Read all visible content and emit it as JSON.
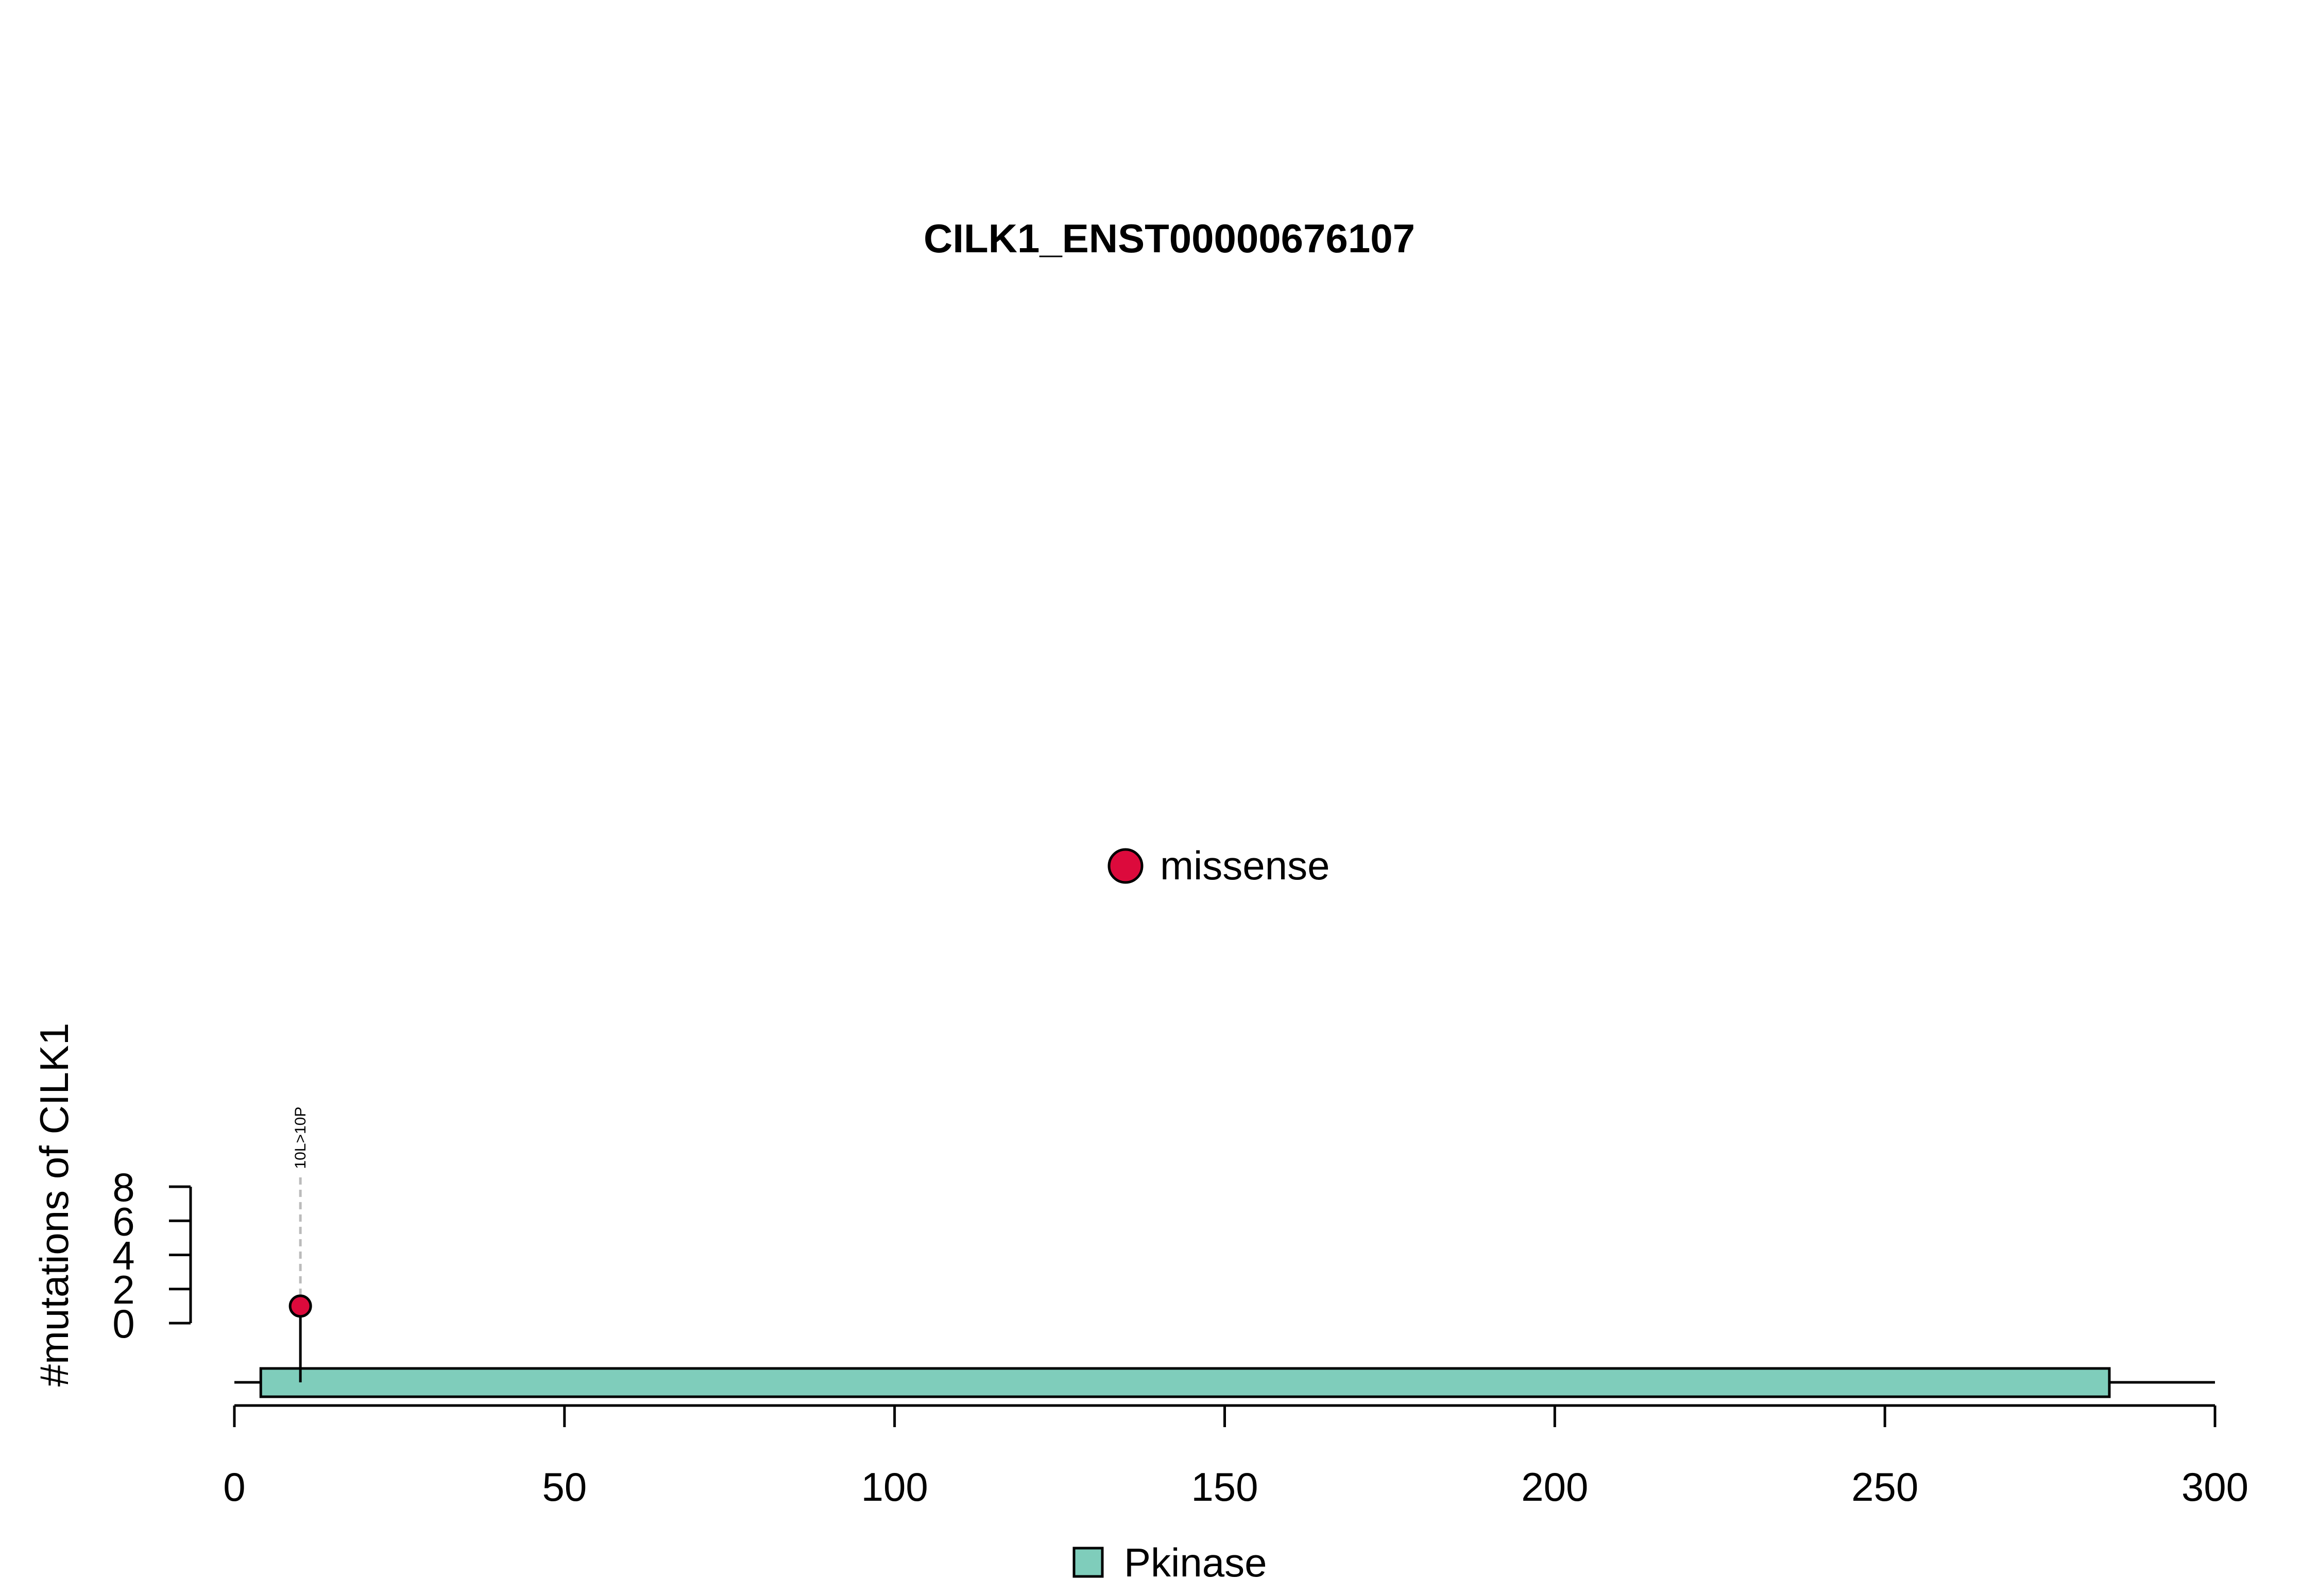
{
  "chart_data": {
    "type": "lollipop",
    "title": "CILK1_ENST00000676107",
    "ylabel": "#mutations of CILK1",
    "xlabel": "",
    "xlim": [
      0,
      300
    ],
    "ylim": [
      0,
      8
    ],
    "x_ticks": [
      "0",
      "50",
      "100",
      "150",
      "200",
      "250",
      "300"
    ],
    "y_ticks": [
      "0",
      "2",
      "4",
      "6",
      "8"
    ],
    "mutations": [
      {
        "position": 10,
        "count": 1,
        "label": "10L>10P",
        "type": "missense"
      }
    ],
    "domains": [
      {
        "name": "Pkinase",
        "start": 4,
        "end": 284,
        "color": "#7fcdbb"
      }
    ],
    "legend_top": [
      {
        "label": "missense",
        "color": "#dc0a3c"
      }
    ],
    "legend_bottom": [
      {
        "label": "Pkinase",
        "color": "#7fcdbb"
      }
    ]
  }
}
